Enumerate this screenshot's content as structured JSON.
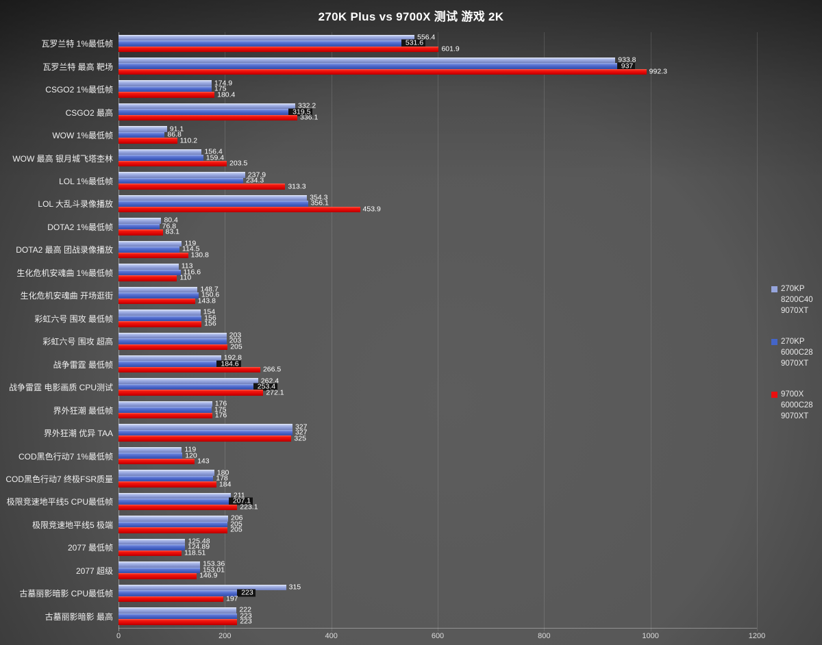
{
  "title": "270K Plus vs 9700X 测试 游戏 2K",
  "colors": {
    "series1": "#96a5dc",
    "series2": "#4465c8",
    "series3": "#ea0f0f",
    "background": "#555555",
    "text": "#ffffff"
  },
  "chart_data": {
    "type": "bar",
    "orientation": "horizontal",
    "title": "270K Plus vs 9700X 测试 游戏 2K",
    "xlabel": "",
    "ylabel": "",
    "xlim": [
      0,
      1200
    ],
    "x_ticks": [
      0,
      200,
      400,
      600,
      800,
      1000,
      1200
    ],
    "grid": true,
    "legend_position": "right",
    "series": [
      {
        "name": "270KP 8200C40 9070XT",
        "legend_lines": [
          "270KP",
          "8200C40",
          "9070XT"
        ],
        "color": "#96a5dc"
      },
      {
        "name": "270KP 6000C28 9070XT",
        "legend_lines": [
          "270KP",
          "6000C28",
          "9070XT"
        ],
        "color": "#4465c8"
      },
      {
        "name": "9700X 6000C28 9070XT",
        "legend_lines": [
          "9700X",
          "6000C28",
          "9070XT"
        ],
        "color": "#ea0f0f"
      }
    ],
    "rows": [
      {
        "category": "瓦罗兰特 1%最低帧",
        "values": [
          556.4,
          531.6,
          601.9
        ],
        "s2_dark_label": true
      },
      {
        "category": "瓦罗兰特 最高 靶场",
        "values": [
          933.8,
          937,
          992.3
        ],
        "s2_dark_label": true
      },
      {
        "category": "CSGO2 1%最低帧",
        "values": [
          174.9,
          175,
          180.4
        ],
        "s2_dark_label": false
      },
      {
        "category": "CSGO2 最高",
        "values": [
          332.2,
          319.5,
          336.1
        ],
        "s2_dark_label": true
      },
      {
        "category": "WOW 1%最低帧",
        "values": [
          91.1,
          86.8,
          110.2
        ],
        "s2_dark_label": false
      },
      {
        "category": "WOW 最高 银月城飞塔杢林",
        "values": [
          156.4,
          159.4,
          203.5
        ],
        "s2_dark_label": false
      },
      {
        "category": "LOL 1%最低帧",
        "values": [
          237.9,
          234.3,
          313.3
        ],
        "s2_dark_label": false
      },
      {
        "category": "LOL 大乱斗录像播放",
        "values": [
          354.3,
          356.1,
          453.9
        ],
        "s2_dark_label": false
      },
      {
        "category": "DOTA2 1%最低帧",
        "values": [
          80.4,
          76.8,
          83.1
        ],
        "s2_dark_label": false
      },
      {
        "category": "DOTA2 最高 团战录像播放",
        "values": [
          119,
          114.5,
          130.8
        ],
        "s2_dark_label": false
      },
      {
        "category": "生化危机安魂曲 1%最低帧",
        "values": [
          113,
          116.6,
          110
        ],
        "s2_dark_label": false
      },
      {
        "category": "生化危机安魂曲 开场逛街",
        "values": [
          148.7,
          150.6,
          143.8
        ],
        "s2_dark_label": false
      },
      {
        "category": "彩虹六号 围攻 最低帧",
        "values": [
          154,
          156,
          156
        ],
        "s2_dark_label": false
      },
      {
        "category": "彩虹六号 围攻 超高",
        "values": [
          203,
          203,
          205
        ],
        "s2_dark_label": false
      },
      {
        "category": "战争雷霆 最低帧",
        "values": [
          192.8,
          184.6,
          266.5
        ],
        "s2_dark_label": true
      },
      {
        "category": "战争雷霆 电影画质 CPU测试",
        "values": [
          262.4,
          253.4,
          272.1
        ],
        "s2_dark_label": true
      },
      {
        "category": "界外狂潮 最低帧",
        "values": [
          176,
          175,
          176
        ],
        "s2_dark_label": false
      },
      {
        "category": "界外狂潮 优异 TAA",
        "values": [
          327,
          327,
          325
        ],
        "s2_dark_label": false
      },
      {
        "category": "COD黑色行动7 1%最低帧",
        "values": [
          119,
          120,
          143
        ],
        "s2_dark_label": false
      },
      {
        "category": "COD黑色行动7 终极FSR质量",
        "values": [
          180,
          178,
          184
        ],
        "s2_dark_label": false
      },
      {
        "category": "极限竞速地平线5 CPU最低帧",
        "values": [
          211,
          207.1,
          223.1
        ],
        "s2_dark_label": true
      },
      {
        "category": "极限竞速地平线5 极端",
        "values": [
          206,
          205,
          205
        ],
        "s2_dark_label": false
      },
      {
        "category": "2077 最低帧",
        "values": [
          125.48,
          124.89,
          118.51
        ],
        "s2_dark_label": false
      },
      {
        "category": "2077 超级",
        "values": [
          153.36,
          153.01,
          146.9
        ],
        "s2_dark_label": false
      },
      {
        "category": "古墓丽影暗影 CPU最低帧",
        "values": [
          315,
          223,
          197
        ],
        "s2_dark_label": true
      },
      {
        "category": "古墓丽影暗影 最高",
        "values": [
          222,
          223,
          223
        ],
        "s2_dark_label": false
      }
    ]
  }
}
